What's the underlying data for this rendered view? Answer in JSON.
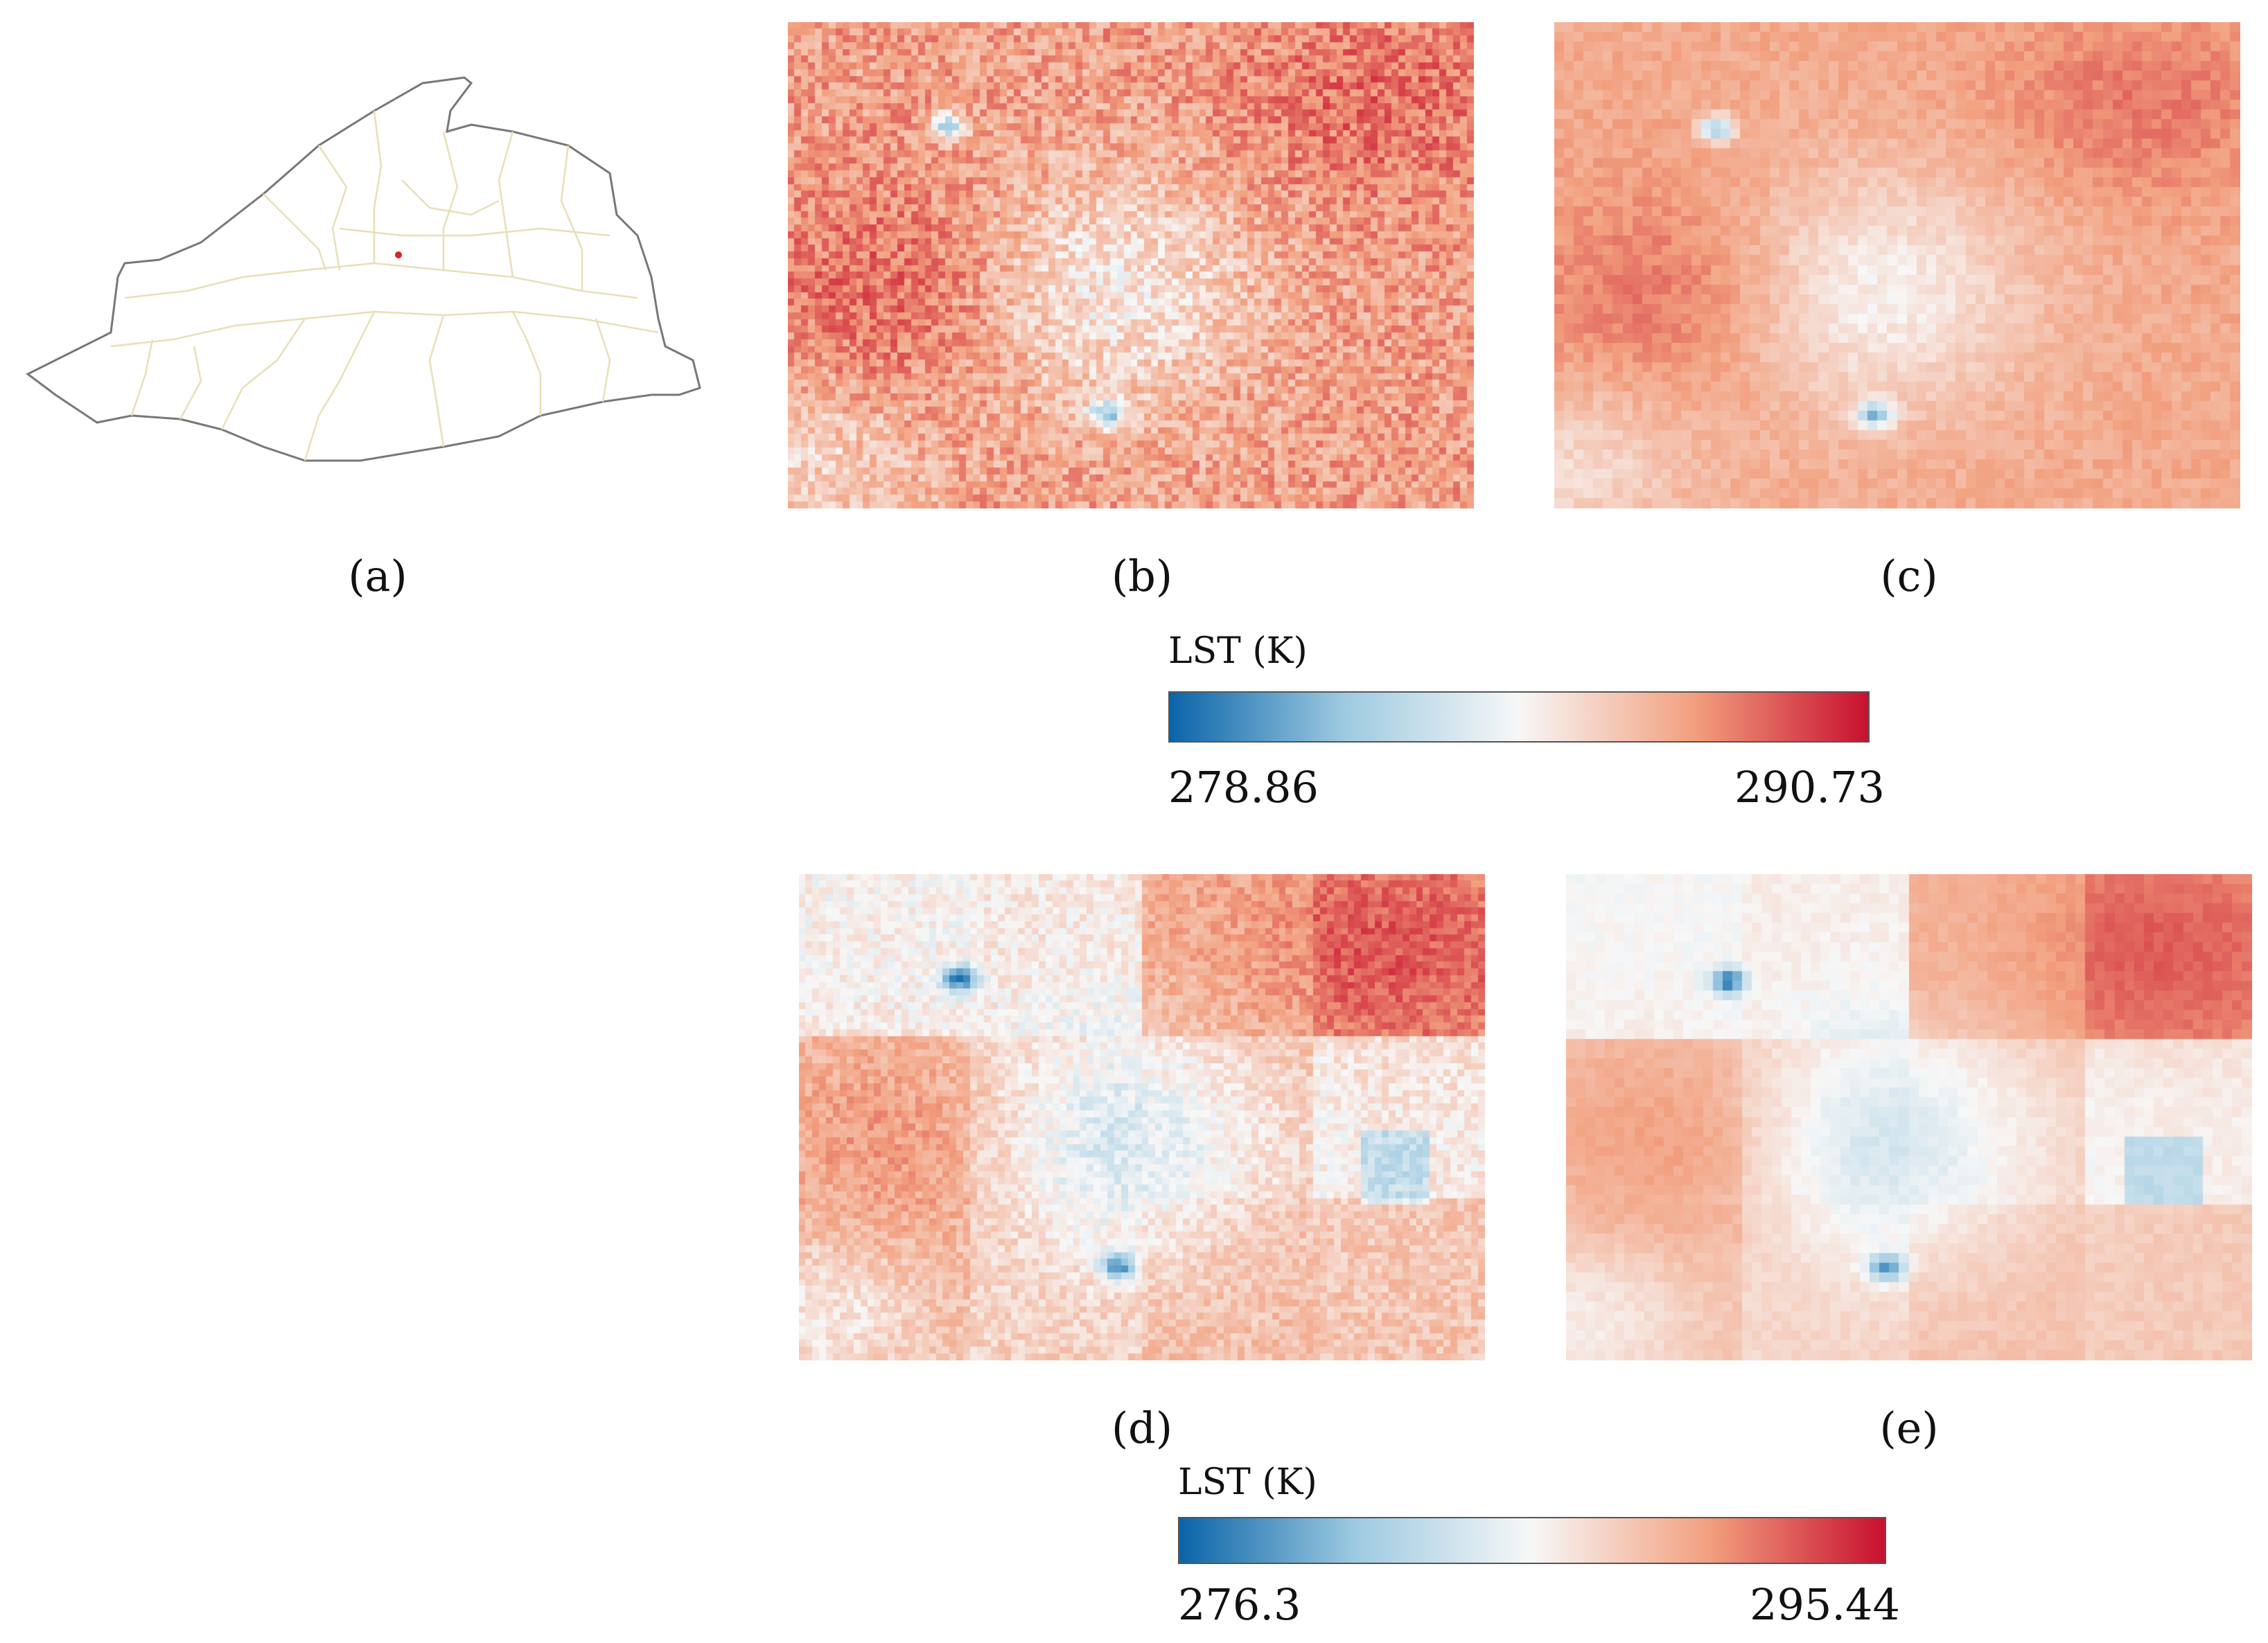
{
  "panels": {
    "a": {
      "label": "(a)",
      "name": "province-outline-map"
    },
    "b": {
      "label": "(b)"
    },
    "c": {
      "label": "(c)"
    },
    "d": {
      "label": "(d)"
    },
    "e": {
      "label": "(e)"
    }
  },
  "colorbars": [
    {
      "title": "LST (K)",
      "min": "278.86",
      "max": "290.73",
      "colors": [
        "#0a64a8",
        "#9ecae1",
        "#f7f7f7",
        "#f2a07f",
        "#c8102e"
      ]
    },
    {
      "title": "LST (K)",
      "min": "276.3",
      "max": "295.44",
      "colors": [
        "#0a64a8",
        "#9ecae1",
        "#f7f7f7",
        "#f2a07f",
        "#c8102e"
      ]
    }
  ],
  "map": {
    "outline_color": "#777777",
    "boundary_color": "#e8dfb8",
    "marker_color": "#e02020"
  }
}
